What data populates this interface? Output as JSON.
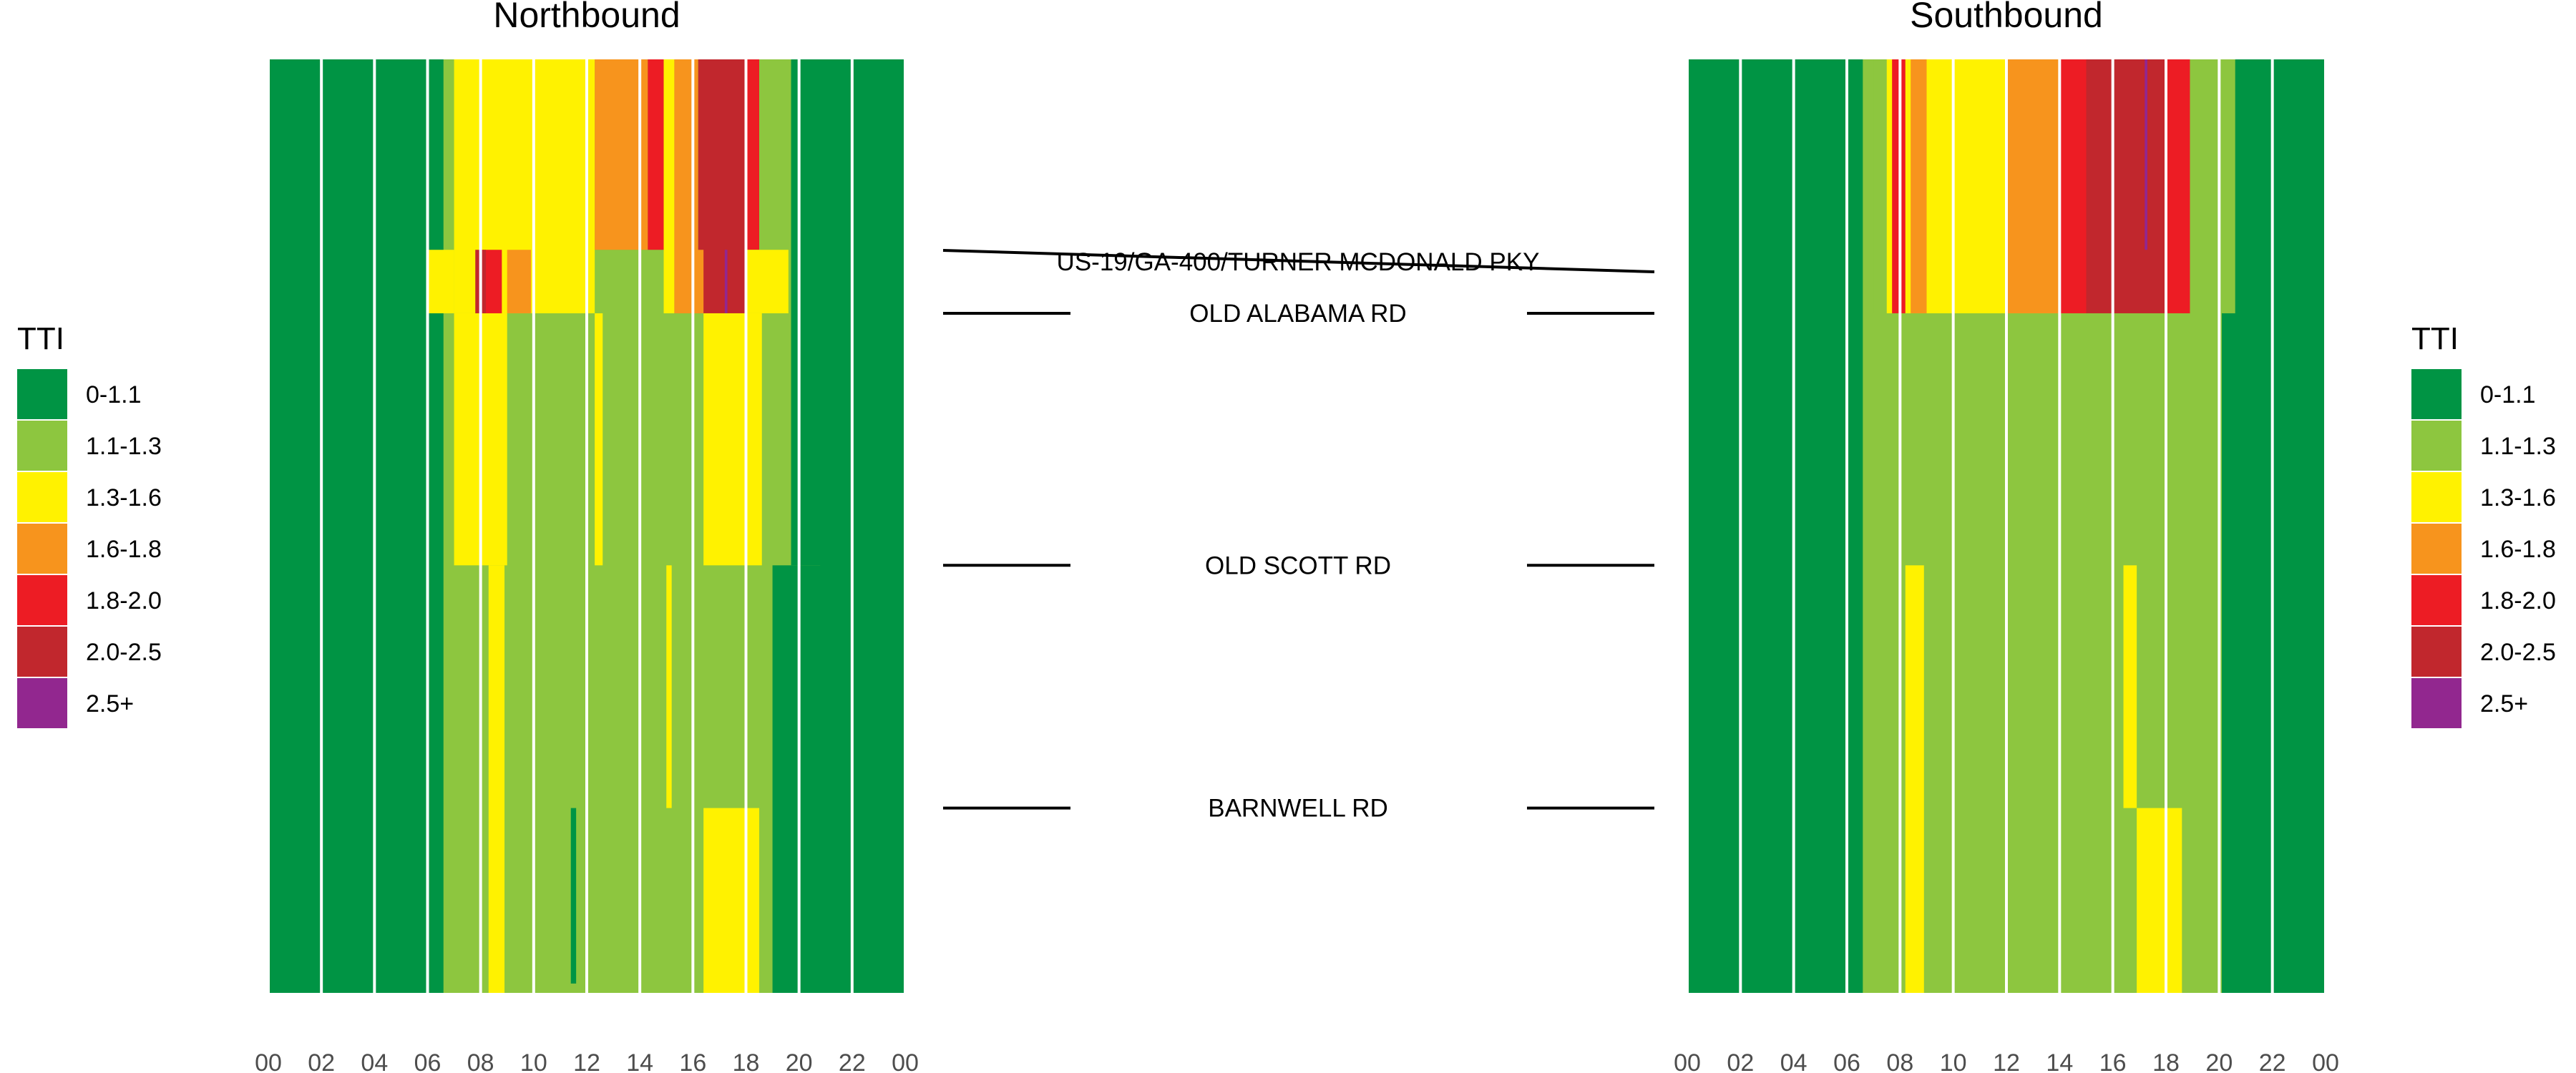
{
  "colors": {
    "0-1.1": "#009444",
    "1.1-1.3": "#8dc63f",
    "1.3-1.6": "#fff200",
    "1.6-1.8": "#f7941d",
    "1.8-2.0": "#ed1c24",
    "2.0-2.5": "#c1272d",
    "2.5+": "#92278f"
  },
  "chart_data": {
    "type": "heatmap",
    "value_label": "TTI",
    "legend": {
      "title": "TTI",
      "entries": [
        "0-1.1",
        "1.1-1.3",
        "1.3-1.6",
        "1.6-1.8",
        "1.8-2.0",
        "2.0-2.5",
        "2.5+"
      ]
    },
    "x_axis": {
      "unit": "hour of day",
      "range": [
        0,
        24
      ],
      "tick_labels": [
        "00",
        "02",
        "04",
        "06",
        "08",
        "10",
        "12",
        "14",
        "16",
        "18",
        "20",
        "22",
        "00"
      ],
      "gridlines_every_hours": 2
    },
    "y_axis": {
      "unit": "position along corridor (0 = north end, 1 = south end)",
      "range": [
        0,
        1
      ],
      "landmarks": [
        {
          "label": "US-19/GA-400/TURNER MCDONALD PKY",
          "position": 0.215
        },
        {
          "label": "OLD ALABAMA RD",
          "position": 0.272
        },
        {
          "label": "OLD SCOTT RD",
          "position": 0.542
        },
        {
          "label": "BARNWELL RD",
          "position": 0.802
        }
      ]
    },
    "panels": [
      {
        "title": "Northbound",
        "y_extent": [
          0.0,
          1.0
        ],
        "base": "0-1.1",
        "cells": [
          {
            "t": [
              6.6,
              20.8
            ],
            "y": [
              0.0,
              1.0
            ],
            "c": "1.1-1.3"
          },
          {
            "t": [
              7.0,
              12.3
            ],
            "y": [
              0.0,
              0.272
            ],
            "c": "1.3-1.6"
          },
          {
            "t": [
              7.0,
              9.0
            ],
            "y": [
              0.272,
              0.542
            ],
            "c": "1.3-1.6"
          },
          {
            "t": [
              6.0,
              7.0
            ],
            "y": [
              0.204,
              0.272
            ],
            "c": "1.3-1.6"
          },
          {
            "t": [
              12.3,
              14.3
            ],
            "y": [
              0.0,
              0.204
            ],
            "c": "1.6-1.8"
          },
          {
            "t": [
              14.3,
              14.9
            ],
            "y": [
              0.0,
              0.204
            ],
            "c": "1.8-2.0"
          },
          {
            "t": [
              14.9,
              15.3
            ],
            "y": [
              0.0,
              0.272
            ],
            "c": "1.3-1.6"
          },
          {
            "t": [
              15.3,
              16.2
            ],
            "y": [
              0.0,
              0.272
            ],
            "c": "1.6-1.8"
          },
          {
            "t": [
              16.2,
              18.0
            ],
            "y": [
              0.0,
              0.272
            ],
            "c": "2.0-2.5"
          },
          {
            "t": [
              17.2,
              17.3
            ],
            "y": [
              0.204,
              0.272
            ],
            "c": "2.5+"
          },
          {
            "t": [
              18.0,
              18.5
            ],
            "y": [
              0.0,
              0.204
            ],
            "c": "1.8-2.0"
          },
          {
            "t": [
              18.5,
              19.7
            ],
            "y": [
              0.0,
              0.204
            ],
            "c": "1.1-1.3"
          },
          {
            "t": [
              8.0,
              8.8
            ],
            "y": [
              0.204,
              0.272
            ],
            "c": "1.8-2.0"
          },
          {
            "t": [
              7.8,
              8.2
            ],
            "y": [
              0.204,
              0.272
            ],
            "c": "2.0-2.5"
          },
          {
            "t": [
              9.0,
              9.9
            ],
            "y": [
              0.204,
              0.272
            ],
            "c": "1.6-1.8"
          },
          {
            "t": [
              15.4,
              16.4
            ],
            "y": [
              0.204,
              0.272
            ],
            "c": "1.6-1.8"
          },
          {
            "t": [
              18.0,
              19.6
            ],
            "y": [
              0.204,
              0.272
            ],
            "c": "1.3-1.6"
          },
          {
            "t": [
              16.4,
              18.6
            ],
            "y": [
              0.272,
              0.542
            ],
            "c": "1.3-1.6"
          },
          {
            "t": [
              12.3,
              12.6
            ],
            "y": [
              0.272,
              0.542
            ],
            "c": "1.3-1.6"
          },
          {
            "t": [
              16.4,
              18.5
            ],
            "y": [
              0.802,
              1.0
            ],
            "c": "1.3-1.6"
          },
          {
            "t": [
              8.3,
              8.9
            ],
            "y": [
              0.542,
              1.0
            ],
            "c": "1.3-1.6"
          },
          {
            "t": [
              15.0,
              15.2
            ],
            "y": [
              0.542,
              0.802
            ],
            "c": "1.3-1.6"
          },
          {
            "t": [
              11.4,
              11.6
            ],
            "y": [
              0.802,
              0.99
            ],
            "c": "0-1.1"
          },
          {
            "t": [
              19.0,
              24.0
            ],
            "y": [
              0.542,
              1.0
            ],
            "c": "0-1.1"
          },
          {
            "t": [
              19.7,
              24.0
            ],
            "y": [
              0.0,
              0.542
            ],
            "c": "0-1.1"
          }
        ]
      },
      {
        "title": "Southbound",
        "y_extent": [
          0.0,
          1.0
        ],
        "base": "0-1.1",
        "cells": [
          {
            "t": [
              6.6,
              20.1
            ],
            "y": [
              0.0,
              1.0
            ],
            "c": "1.1-1.3"
          },
          {
            "t": [
              7.0,
              20.6
            ],
            "y": [
              0.0,
              0.272
            ],
            "c": "1.1-1.3"
          },
          {
            "t": [
              7.5,
              18.6
            ],
            "y": [
              0.0,
              0.272
            ],
            "c": "1.3-1.6"
          },
          {
            "t": [
              7.7,
              8.2
            ],
            "y": [
              0.0,
              0.272
            ],
            "c": "1.8-2.0"
          },
          {
            "t": [
              8.4,
              9.0
            ],
            "y": [
              0.0,
              0.272
            ],
            "c": "1.6-1.8"
          },
          {
            "t": [
              12.0,
              14.0
            ],
            "y": [
              0.0,
              0.272
            ],
            "c": "1.6-1.8"
          },
          {
            "t": [
              14.0,
              15.0
            ],
            "y": [
              0.0,
              0.272
            ],
            "c": "1.8-2.0"
          },
          {
            "t": [
              15.0,
              18.0
            ],
            "y": [
              0.0,
              0.272
            ],
            "c": "2.0-2.5"
          },
          {
            "t": [
              17.2,
              17.3
            ],
            "y": [
              0.0,
              0.204
            ],
            "c": "2.5+"
          },
          {
            "t": [
              18.0,
              18.9
            ],
            "y": [
              0.0,
              0.272
            ],
            "c": "1.8-2.0"
          },
          {
            "t": [
              19.4,
              20.6
            ],
            "y": [
              0.0,
              0.272
            ],
            "c": "1.1-1.3"
          },
          {
            "t": [
              8.2,
              8.9
            ],
            "y": [
              0.542,
              1.0
            ],
            "c": "1.3-1.6"
          },
          {
            "t": [
              16.4,
              16.9
            ],
            "y": [
              0.542,
              0.802
            ],
            "c": "1.3-1.6"
          },
          {
            "t": [
              16.9,
              18.6
            ],
            "y": [
              0.802,
              1.0
            ],
            "c": "1.3-1.6"
          },
          {
            "t": [
              20.1,
              24.0
            ],
            "y": [
              0.272,
              1.0
            ],
            "c": "0-1.1"
          },
          {
            "t": [
              21.4,
              24.0
            ],
            "y": [
              0.0,
              0.272
            ],
            "c": "0-1.1"
          }
        ]
      }
    ]
  }
}
